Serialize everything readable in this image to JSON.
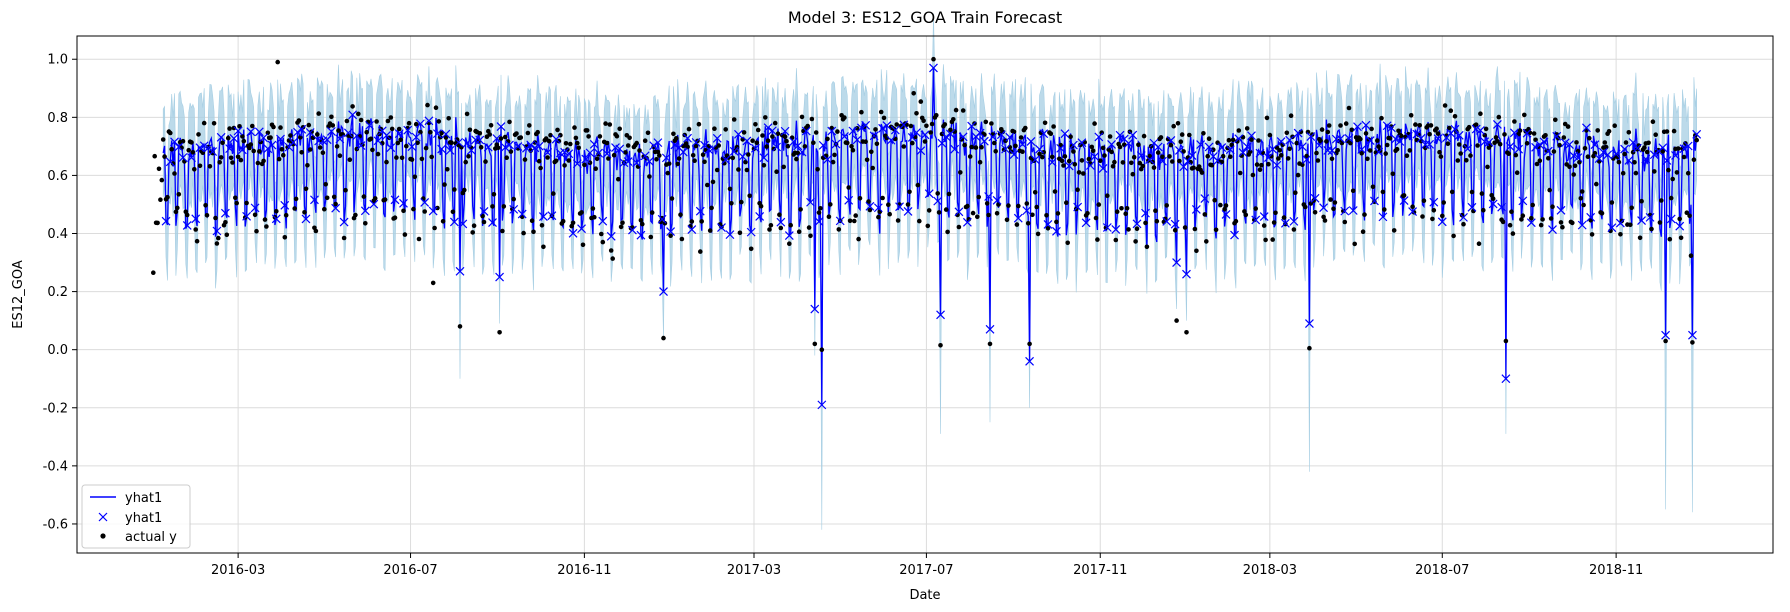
{
  "chart_data": {
    "type": "line",
    "title": "Model 3: ES12_GOA Train Forecast",
    "xlabel": "Date",
    "ylabel": "ES12_GOA",
    "x_range": [
      "2016-01-01",
      "2018-12-28"
    ],
    "ylim": [
      -0.7,
      1.08
    ],
    "x_ticks": [
      "2016-03",
      "2016-07",
      "2016-11",
      "2017-03",
      "2017-07",
      "2017-11",
      "2018-03",
      "2018-07",
      "2018-11"
    ],
    "y_ticks": [
      -0.6,
      -0.4,
      -0.2,
      0.0,
      0.2,
      0.4,
      0.6,
      0.8,
      1.0
    ],
    "grid": true,
    "legend_position": "lower-left",
    "legend": [
      {
        "label": "yhat1",
        "marker": "line",
        "color": "#0000ff"
      },
      {
        "label": "yhat1",
        "marker": "x",
        "color": "#0000ff"
      },
      {
        "label": "actual y",
        "marker": "dot",
        "color": "#000000"
      }
    ],
    "series_colors": {
      "yhat1": "#0000ff",
      "actual_y": "#000000",
      "interval": "#a6cee3"
    },
    "data_start": "2016-01-01",
    "forecast_start": "2016-01-08",
    "data_end": "2018-12-28",
    "key_points": [
      {
        "x": "2016-01-01",
        "actual_y": 0.265
      },
      {
        "x": "2016-03-29",
        "actual_y": 0.99
      },
      {
        "x": "2016-07-17",
        "actual_y": 0.23
      },
      {
        "x": "2016-08-05",
        "yhat1": 0.27,
        "actual_y": 0.08
      },
      {
        "x": "2016-09-02",
        "yhat1": 0.25,
        "actual_y": 0.06
      },
      {
        "x": "2016-12-27",
        "yhat1": 0.2,
        "actual_y": 0.04
      },
      {
        "x": "2017-04-13",
        "yhat1": 0.14,
        "actual_y": 0.02
      },
      {
        "x": "2017-04-18",
        "yhat1": -0.19,
        "actual_y": 0.0
      },
      {
        "x": "2017-07-06",
        "yhat1": 0.97,
        "actual_y": 1.0
      },
      {
        "x": "2017-07-11",
        "yhat1": 0.12,
        "actual_y": 0.015
      },
      {
        "x": "2017-08-15",
        "yhat1": 0.07,
        "actual_y": 0.02
      },
      {
        "x": "2017-09-12",
        "yhat1": -0.04,
        "actual_y": 0.02
      },
      {
        "x": "2017-12-25",
        "yhat1": 0.3,
        "actual_y": 0.1
      },
      {
        "x": "2018-01-01",
        "yhat1": 0.26,
        "actual_y": 0.06
      },
      {
        "x": "2018-03-29",
        "yhat1": 0.09,
        "actual_y": 0.005
      },
      {
        "x": "2018-08-15",
        "yhat1": -0.1,
        "actual_y": 0.03
      },
      {
        "x": "2018-12-06",
        "yhat1": 0.05,
        "actual_y": 0.03
      },
      {
        "x": "2018-12-25",
        "yhat1": 0.05,
        "actual_y": 0.025
      }
    ],
    "interval_extremes": [
      {
        "x": "2016-08-05",
        "lower": -0.1
      },
      {
        "x": "2017-04-18",
        "lower": -0.62
      },
      {
        "x": "2017-07-11",
        "lower": -0.29
      },
      {
        "x": "2017-08-15",
        "lower": -0.25
      },
      {
        "x": "2018-03-29",
        "lower": -0.42
      },
      {
        "x": "2018-08-15",
        "lower": -0.29
      },
      {
        "x": "2018-12-06",
        "lower": -0.55
      },
      {
        "x": "2018-12-25",
        "lower": -0.56
      }
    ]
  }
}
